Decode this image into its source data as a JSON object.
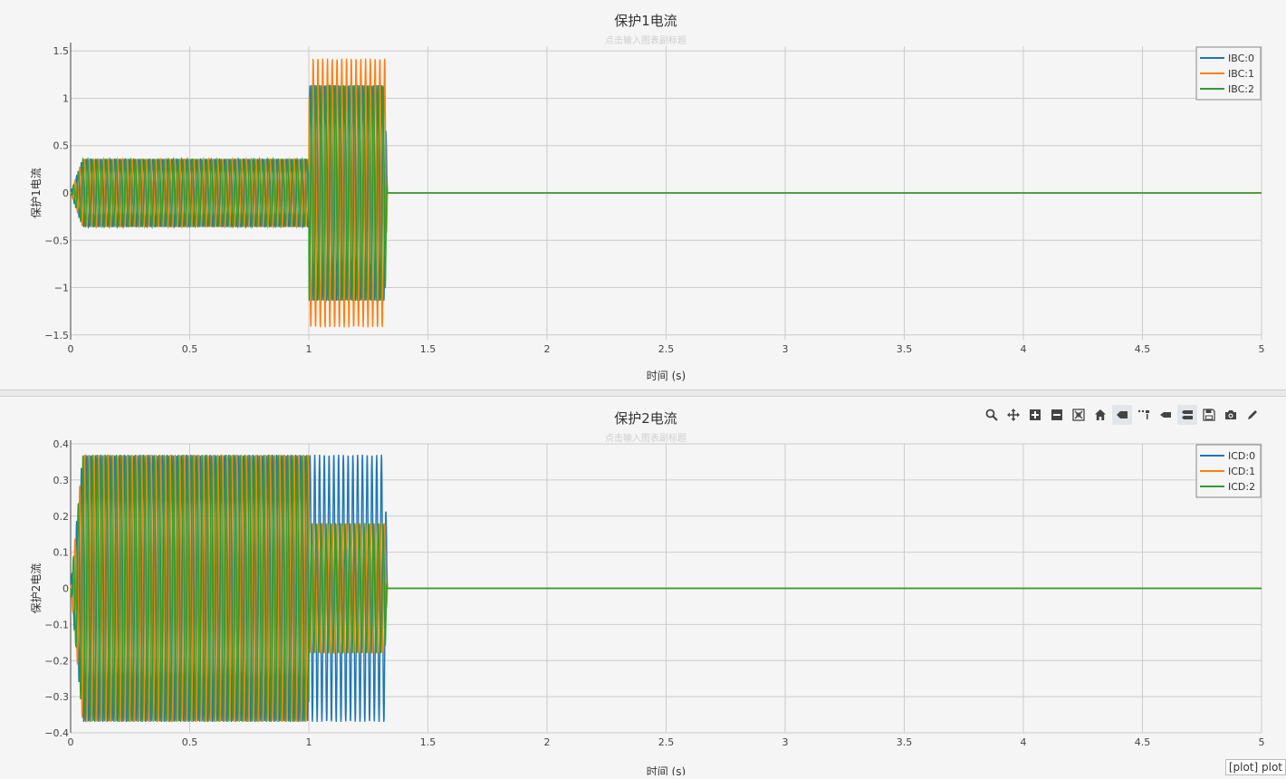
{
  "chart_data": [
    {
      "type": "line",
      "title": "保护1电流",
      "subtitle": "点击输入图表副标题",
      "xlabel": "时间 (s)",
      "ylabel": "保护1电流",
      "xlim": [
        0,
        5
      ],
      "ylim": [
        -1.55,
        1.55
      ],
      "xticks": [
        0,
        0.5,
        1,
        1.5,
        2,
        2.5,
        3,
        3.5,
        4,
        4.5,
        5
      ],
      "xtick_labels": [
        "0",
        "0.5",
        "1",
        "1.5",
        "2",
        "2.5",
        "3",
        "3.5",
        "4",
        "4.5",
        "5"
      ],
      "yticks": [
        1.5,
        1,
        0.5,
        0,
        -0.5,
        -1,
        -1.5
      ],
      "ytick_labels": [
        "1.5",
        "1",
        "0.5",
        "0",
        "−0.5",
        "−1",
        "−1.5"
      ],
      "grid": true,
      "legend_position": "top-right",
      "series": [
        {
          "name": "IBC:0",
          "color": "#1f77b4",
          "x": [
            0,
            0.05,
            1.0,
            1.32,
            1.33,
            5.0
          ],
          "amplitude": [
            0,
            0.36,
            0.36,
            1.14,
            0,
            0
          ]
        },
        {
          "name": "IBC:1",
          "color": "#ff7f0e",
          "x": [
            0,
            0.05,
            1.0,
            1.32,
            1.33,
            5.0
          ],
          "amplitude": [
            0,
            0.36,
            0.36,
            1.42,
            0,
            0
          ]
        },
        {
          "name": "IBC:2",
          "color": "#2ca02c",
          "x": [
            0,
            0.05,
            1.0,
            1.32,
            1.33,
            5.0
          ],
          "amplitude": [
            0,
            0.36,
            0.36,
            1.14,
            0,
            0
          ]
        }
      ]
    },
    {
      "type": "line",
      "title": "保护2电流",
      "subtitle": "点击输入图表副标题",
      "xlabel": "时间 (s)",
      "ylabel": "保护2电流",
      "xlim": [
        0,
        5
      ],
      "ylim": [
        -0.4,
        0.4
      ],
      "xticks": [
        0,
        0.5,
        1,
        1.5,
        2,
        2.5,
        3,
        3.5,
        4,
        4.5,
        5
      ],
      "xtick_labels": [
        "0",
        "0.5",
        "1",
        "1.5",
        "2",
        "2.5",
        "3",
        "3.5",
        "4",
        "4.5",
        "5"
      ],
      "yticks": [
        0.4,
        0.3,
        0.2,
        0.1,
        0,
        -0.1,
        -0.2,
        -0.3,
        -0.4
      ],
      "ytick_labels": [
        "0.4",
        "0.3",
        "0.2",
        "0.1",
        "0",
        "−0.1",
        "−0.2",
        "−0.3",
        "−0.4"
      ],
      "grid": true,
      "legend_position": "top-right",
      "series": [
        {
          "name": "ICD:0",
          "color": "#1f77b4",
          "x": [
            0,
            0.05,
            1.0,
            1.32,
            1.33,
            5.0
          ],
          "amplitude": [
            0,
            0.37,
            0.37,
            0.37,
            0,
            0
          ]
        },
        {
          "name": "ICD:1",
          "color": "#ff7f0e",
          "x": [
            0,
            0.05,
            1.0,
            1.32,
            1.33,
            5.0
          ],
          "amplitude": [
            0,
            0.37,
            0.37,
            0.18,
            0,
            0
          ]
        },
        {
          "name": "ICD:2",
          "color": "#2ca02c",
          "x": [
            0,
            0.05,
            1.0,
            1.32,
            1.33,
            5.0
          ],
          "amplitude": [
            0,
            0.37,
            0.37,
            0.18,
            0,
            0
          ]
        }
      ]
    }
  ],
  "modebar": {
    "buttons": [
      "zoom-icon",
      "pan-icon",
      "zoom-in-icon",
      "zoom-out-icon",
      "autoscale-icon",
      "reset-axes-icon",
      "spike-lines-icon",
      "hover-compare-icon",
      "hover-closest-icon",
      "toggle-hover-icon",
      "save-icon",
      "camera-icon",
      "edit-icon"
    ],
    "active": [
      "zoom-icon",
      "spike-lines-icon",
      "toggle-hover-icon"
    ]
  },
  "corner_tag": "[plot] plot"
}
